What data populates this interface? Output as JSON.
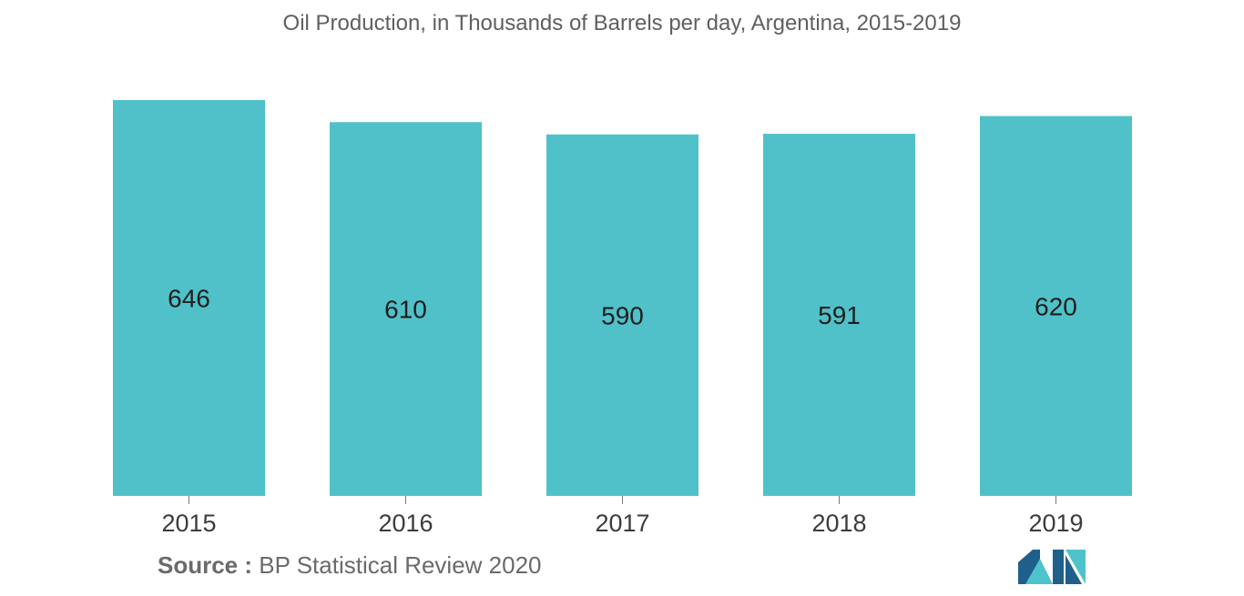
{
  "chart_data": {
    "type": "bar",
    "title": "Oil Production, in Thousands of Barrels per day, Argentina, 2015-2019",
    "categories": [
      "2015",
      "2016",
      "2017",
      "2018",
      "2019"
    ],
    "values": [
      646,
      610,
      590,
      591,
      620
    ],
    "value_labels": [
      "646",
      "610",
      "590",
      "591",
      "620"
    ],
    "xlabel": "",
    "ylabel": "",
    "grid": false,
    "legend": "none",
    "bar_color": "#50c1c9"
  },
  "source": {
    "label": "Source :",
    "text": "BP Statistical Review 2020"
  },
  "colors": {
    "bar": "#50c1c9",
    "title_text": "#5f5f5f",
    "axis": "#7a7a7a",
    "logo_dark": "#1f5f8b",
    "logo_light": "#4fc3cb"
  }
}
